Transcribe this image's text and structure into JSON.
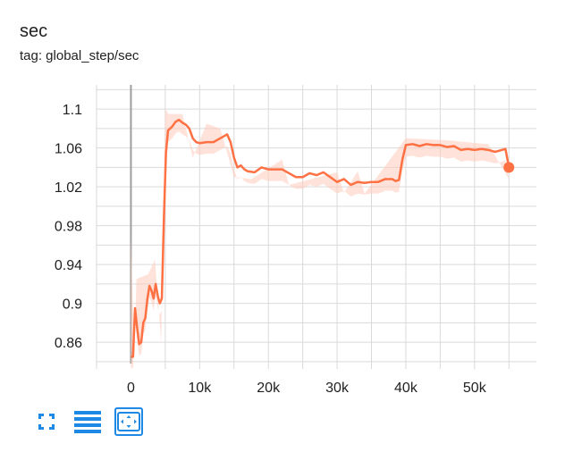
{
  "header": {
    "title": "sec",
    "tag": "tag: global_step/sec"
  },
  "colors": {
    "line": "#ff7043",
    "raw_line": "#ffccbc",
    "grid": "#d9d9d9",
    "zero_axis": "#9e9e9e",
    "icon": "#1e88e5"
  },
  "toolbar": {
    "buttons": [
      {
        "name": "fullscreen-icon"
      },
      {
        "name": "menu-lines-icon"
      },
      {
        "name": "fit-domain-icon"
      }
    ]
  },
  "chart_data": {
    "type": "line",
    "title": "sec",
    "xlabel": "",
    "ylabel": "",
    "xlim": [
      -5000,
      59000
    ],
    "ylim": [
      0.838,
      1.125
    ],
    "x_ticks": [
      0,
      10000,
      20000,
      30000,
      40000,
      50000
    ],
    "x_tick_labels": [
      "0",
      "10k",
      "20k",
      "30k",
      "40k",
      "50k"
    ],
    "y_ticks": [
      0.86,
      0.9,
      0.94,
      0.98,
      1.02,
      1.06,
      1.1
    ],
    "y_tick_labels": [
      "0.86",
      "0.9",
      "0.94",
      "0.98",
      "1.02",
      "1.06",
      "1.1"
    ],
    "grid": true,
    "series": [
      {
        "x": [
          0,
          300,
          600,
          900,
          1200,
          1500,
          1800,
          2100,
          2400,
          2700,
          3000,
          3300,
          3600,
          3900,
          4200,
          4500,
          4800,
          5100,
          5400,
          5700,
          6000,
          6500,
          7000,
          7500,
          8000,
          8500,
          9000,
          9500,
          10000,
          11000,
          12000,
          13000,
          14000,
          14500,
          15000,
          15500,
          16000,
          16500,
          17000,
          18000,
          19000,
          20000,
          21000,
          22000,
          23000,
          24000,
          25000,
          26000,
          27000,
          28000,
          29000,
          30000,
          31000,
          32000,
          33000,
          34000,
          35000,
          36000,
          37000,
          38000,
          38500,
          39000,
          39500,
          40000,
          41000,
          42000,
          43000,
          44000,
          45000,
          46000,
          47000,
          48000,
          49000,
          50000,
          51000,
          52000,
          53000,
          54000,
          54500,
          55000
        ],
        "values": [
          0.845,
          0.845,
          0.895,
          0.875,
          0.858,
          0.86,
          0.88,
          0.885,
          0.905,
          0.918,
          0.913,
          0.905,
          0.92,
          0.908,
          0.9,
          0.905,
          0.988,
          1.055,
          1.078,
          1.08,
          1.082,
          1.087,
          1.089,
          1.086,
          1.084,
          1.08,
          1.07,
          1.066,
          1.065,
          1.066,
          1.066,
          1.07,
          1.074,
          1.066,
          1.05,
          1.04,
          1.042,
          1.038,
          1.036,
          1.035,
          1.04,
          1.038,
          1.038,
          1.038,
          1.034,
          1.03,
          1.03,
          1.034,
          1.032,
          1.035,
          1.03,
          1.025,
          1.028,
          1.022,
          1.025,
          1.024,
          1.025,
          1.025,
          1.028,
          1.028,
          1.026,
          1.027,
          1.048,
          1.063,
          1.064,
          1.062,
          1.064,
          1.063,
          1.063,
          1.061,
          1.062,
          1.058,
          1.059,
          1.058,
          1.059,
          1.058,
          1.056,
          1.058,
          1.059,
          1.04
        ]
      }
    ],
    "raw_band": [
      {
        "x": 0,
        "v": 0.97
      },
      {
        "x": 500,
        "v": 0.84
      },
      {
        "x": 800,
        "v": 0.925
      },
      {
        "x": 2500,
        "v": 0.93
      },
      {
        "x": 3500,
        "v": 0.945
      },
      {
        "x": 4400,
        "v": 0.86
      },
      {
        "x": 5000,
        "v": 1.1
      },
      {
        "x": 5500,
        "v": 1.095
      },
      {
        "x": 7500,
        "v": 1.095
      },
      {
        "x": 9000,
        "v": 1.05
      },
      {
        "x": 11000,
        "v": 1.085
      },
      {
        "x": 13000,
        "v": 1.08
      },
      {
        "x": 15000,
        "v": 1.03
      },
      {
        "x": 17500,
        "v": 1.028
      },
      {
        "x": 22000,
        "v": 1.048
      },
      {
        "x": 23000,
        "v": 1.022
      },
      {
        "x": 30000,
        "v": 1.035
      },
      {
        "x": 31000,
        "v": 1.014
      },
      {
        "x": 33000,
        "v": 1.036
      },
      {
        "x": 34000,
        "v": 1.013
      },
      {
        "x": 40000,
        "v": 1.07
      },
      {
        "x": 46000,
        "v": 1.068
      },
      {
        "x": 52000,
        "v": 1.064
      },
      {
        "x": 55000,
        "v": 1.028
      }
    ]
  }
}
